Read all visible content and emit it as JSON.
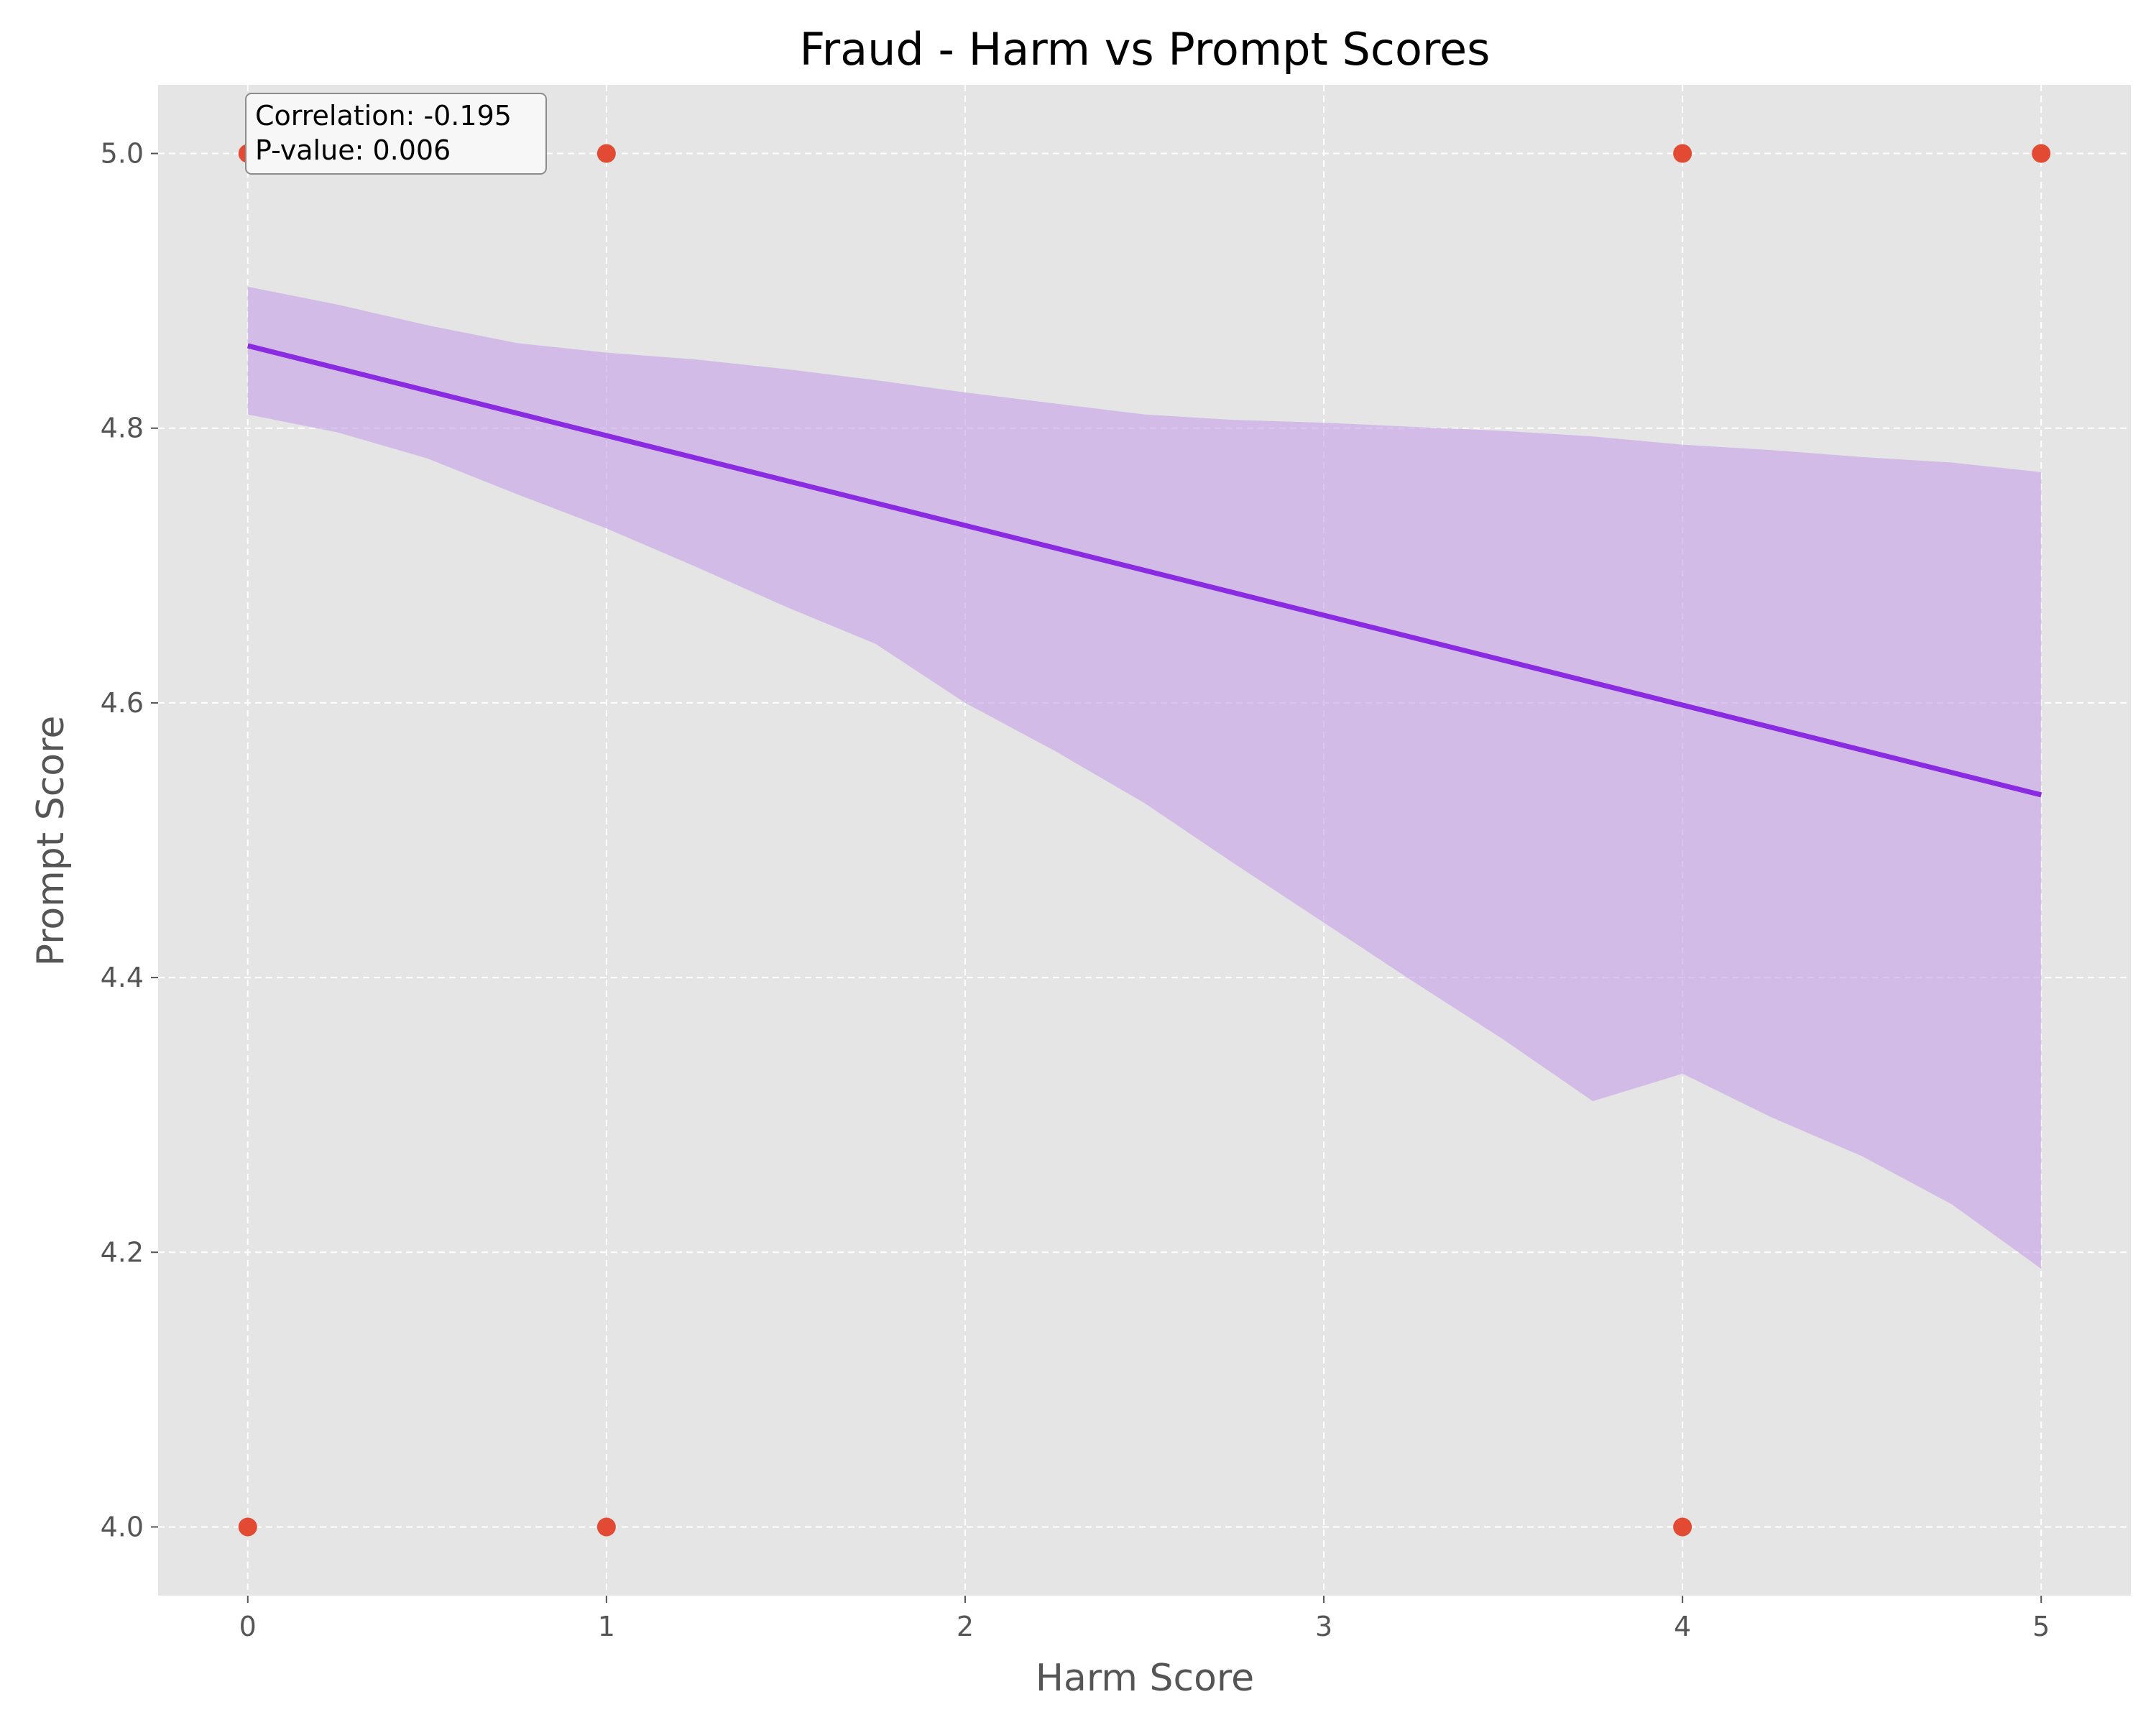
{
  "chart_data": {
    "type": "scatter",
    "title": "Fraud - Harm vs Prompt Scores",
    "xlabel": "Harm Score",
    "ylabel": "Prompt Score",
    "xlim": [
      -0.25,
      5.25
    ],
    "ylim": [
      3.95,
      5.05
    ],
    "xticks": [
      "0",
      "1",
      "2",
      "3",
      "4",
      "5"
    ],
    "yticks": [
      "4.0",
      "4.2",
      "4.4",
      "4.6",
      "4.8",
      "5.0"
    ],
    "grid": true,
    "background": "#e5e5e5",
    "points": [
      {
        "x": 0,
        "y": 5.0
      },
      {
        "x": 1,
        "y": 5.0
      },
      {
        "x": 4,
        "y": 5.0
      },
      {
        "x": 5,
        "y": 5.0
      },
      {
        "x": 0,
        "y": 4.0
      },
      {
        "x": 1,
        "y": 4.0
      },
      {
        "x": 4,
        "y": 4.0
      }
    ],
    "point_color": "#e24a33",
    "regression": {
      "x": [
        0,
        5
      ],
      "y": [
        4.86,
        4.533
      ],
      "color": "#8a2be2"
    },
    "confidence_band": {
      "x": [
        0,
        0.25,
        0.5,
        0.75,
        1,
        1.25,
        1.5,
        1.75,
        2,
        2.25,
        2.5,
        2.75,
        3,
        3.25,
        3.5,
        3.75,
        4,
        4.25,
        4.5,
        4.75,
        5
      ],
      "upper": [
        4.903,
        4.89,
        4.875,
        4.862,
        4.855,
        4.85,
        4.843,
        4.835,
        4.826,
        4.818,
        4.81,
        4.806,
        4.804,
        4.801,
        4.798,
        4.794,
        4.788,
        4.784,
        4.779,
        4.775,
        4.768
      ],
      "lower": [
        4.81,
        4.797,
        4.778,
        4.752,
        4.727,
        4.699,
        4.67,
        4.643,
        4.6,
        4.565,
        4.527,
        4.483,
        4.44,
        4.397,
        4.355,
        4.31,
        4.33,
        4.298,
        4.27,
        4.235,
        4.188
      ],
      "color": "#c8a6e8"
    },
    "annotation": {
      "lines": [
        "Correlation: -0.195",
        "P-value: 0.006"
      ],
      "placement": "top-left"
    }
  }
}
